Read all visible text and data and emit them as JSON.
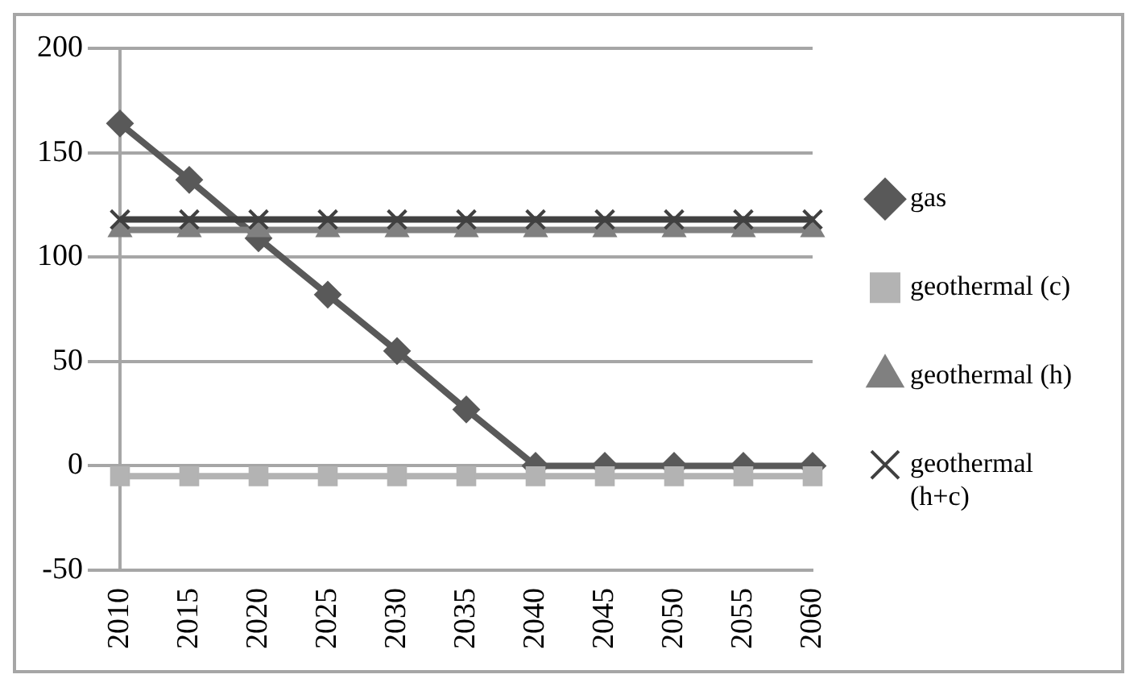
{
  "chart_data": {
    "type": "line",
    "categories": [
      "2010",
      "2015",
      "2020",
      "2025",
      "2030",
      "2035",
      "2040",
      "2045",
      "2050",
      "2055",
      "2060"
    ],
    "series": [
      {
        "name": "gas",
        "color": "#595959",
        "marker": "diamond",
        "values": [
          164,
          137,
          109,
          82,
          55,
          27,
          0,
          0,
          0,
          0,
          0
        ]
      },
      {
        "name": "geothermal (c)",
        "color": "#b3b3b3",
        "marker": "square",
        "values": [
          -5,
          -5,
          -5,
          -5,
          -5,
          -5,
          -5,
          -5,
          -5,
          -5,
          -5
        ]
      },
      {
        "name": "geothermal (h)",
        "color": "#808080",
        "marker": "triangle",
        "values": [
          113,
          113,
          113,
          113,
          113,
          113,
          113,
          113,
          113,
          113,
          113
        ]
      },
      {
        "name": "geothermal (h+c)",
        "color": "#404040",
        "marker": "cross",
        "values": [
          118,
          118,
          118,
          118,
          118,
          118,
          118,
          118,
          118,
          118,
          118
        ]
      }
    ],
    "ylim": [
      -50,
      200
    ],
    "yticks": [
      -50,
      0,
      50,
      100,
      150,
      200
    ],
    "grid": "y",
    "legend": "right"
  }
}
